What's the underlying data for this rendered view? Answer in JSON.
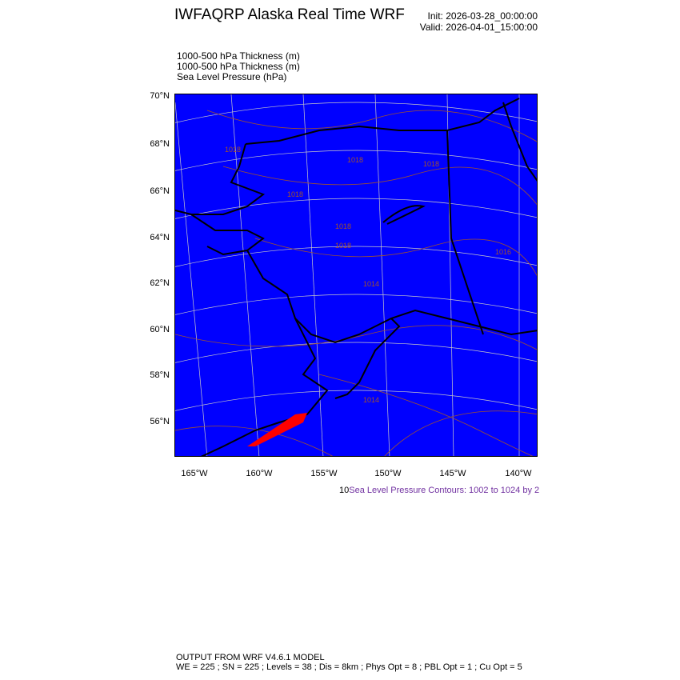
{
  "header": {
    "title": "IWFAQRP Alaska Real Time WRF",
    "init": "Init: 2026-03-28_00:00:00",
    "valid": "Valid: 2026-04-01_15:00:00"
  },
  "fields": [
    "1000-500 hPa Thickness   (m)",
    "1000-500 hPa Thickness   (m)",
    "Sea Level Pressure   (hPa)"
  ],
  "map": {
    "background_color": "#0000ff",
    "coast_color": "#000000",
    "contour_color": "#a0522d",
    "highlight_color": "#ff0000",
    "grid_color": "#c8c8c8",
    "lat_labels": [
      "70°N",
      "68°N",
      "66°N",
      "64°N",
      "62°N",
      "60°N",
      "58°N",
      "56°N"
    ],
    "lon_labels": [
      "165°W",
      "160°W",
      "155°W",
      "150°W",
      "145°W",
      "140°W"
    ],
    "contour_labels": [
      "1018",
      "1018",
      "1018",
      "1018",
      "1018",
      "1016",
      "1018",
      "1014",
      "1014"
    ]
  },
  "legend": {
    "num": "10",
    "text": "Sea Level Pressure Contours: 1002 to 1024 by 2"
  },
  "footer": {
    "line1": "OUTPUT FROM WRF V4.6.1 MODEL",
    "line2": "WE = 225 ; SN = 225 ; Levels = 38 ; Dis = 8km ; Phys Opt = 8 ; PBL Opt = 1 ; Cu Opt = 5"
  }
}
